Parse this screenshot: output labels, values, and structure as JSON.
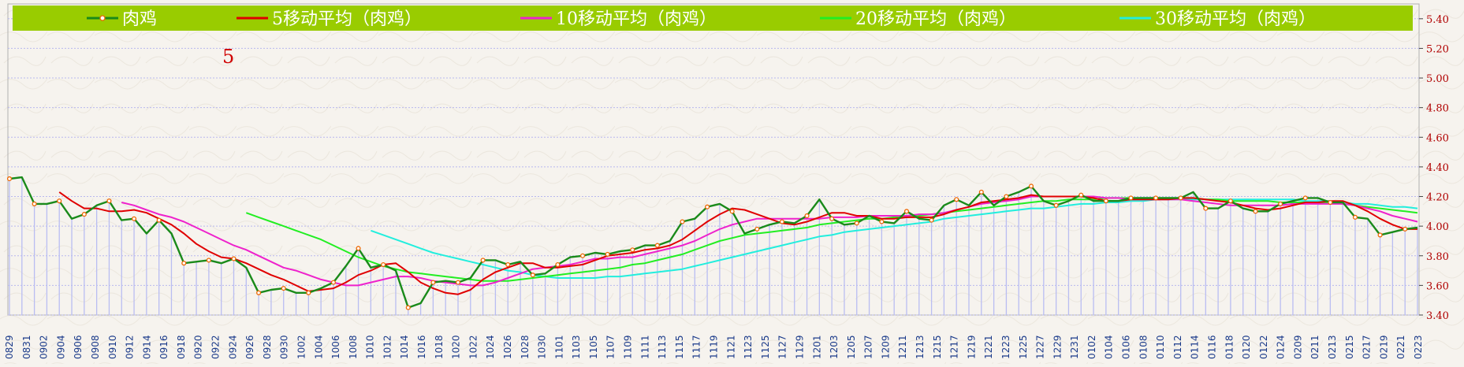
{
  "chart_data": {
    "type": "line",
    "annotation": "5",
    "ylim": [
      3.4,
      5.5
    ],
    "yticks": [
      "3.40",
      "3.60",
      "3.80",
      "4.00",
      "4.20",
      "4.40",
      "4.60",
      "4.80",
      "5.00",
      "5.20",
      "5.40"
    ],
    "ytick_values": [
      3.4,
      3.6,
      3.8,
      4.0,
      4.2,
      4.4,
      4.6,
      4.8,
      5.0,
      5.2,
      5.4
    ],
    "x_labels": [
      "0829",
      "0831",
      "0902",
      "0904",
      "0906",
      "0908",
      "0910",
      "0912",
      "0914",
      "0916",
      "0918",
      "0920",
      "0922",
      "0924",
      "0926",
      "0928",
      "0930",
      "1002",
      "1004",
      "1006",
      "1008",
      "1010",
      "1012",
      "1014",
      "1016",
      "1018",
      "1020",
      "1022",
      "1024",
      "1026",
      "1028",
      "1030",
      "1101",
      "1103",
      "1105",
      "1107",
      "1109",
      "1111",
      "1113",
      "1115",
      "1117",
      "1119",
      "1121",
      "1123",
      "1125",
      "1127",
      "1129",
      "1201",
      "1203",
      "1205",
      "1207",
      "1209",
      "1211",
      "1213",
      "1215",
      "1217",
      "1219",
      "1221",
      "1223",
      "1225",
      "1227",
      "1229",
      "1231",
      "0102",
      "0104",
      "0106",
      "0108",
      "0110",
      "0112",
      "0114",
      "0116",
      "0118",
      "0120",
      "0122",
      "0124",
      "0209",
      "0211",
      "0213",
      "0215",
      "0217",
      "0219",
      "0221",
      "0223"
    ],
    "legend": [
      {
        "label": "肉鸡",
        "color": "#1a8a1a",
        "marker": true
      },
      {
        "label": "5移动平均（肉鸡）",
        "color": "#e00000"
      },
      {
        "label": "10移动平均（肉鸡）",
        "color": "#ee22cc"
      },
      {
        "label": "20移动平均（肉鸡）",
        "color": "#22ee22"
      },
      {
        "label": "30移动平均（肉鸡）",
        "color": "#22eedd"
      }
    ],
    "series": [
      {
        "name": "肉鸡",
        "color": "#1a8a1a",
        "values": [
          4.32,
          4.33,
          4.15,
          4.15,
          4.17,
          4.05,
          4.08,
          4.14,
          4.17,
          4.04,
          4.05,
          3.95,
          4.04,
          3.95,
          3.75,
          3.76,
          3.77,
          3.75,
          3.78,
          3.72,
          3.55,
          3.57,
          3.58,
          3.55,
          3.55,
          3.58,
          3.62,
          3.73,
          3.85,
          3.72,
          3.74,
          3.7,
          3.45,
          3.48,
          3.62,
          3.63,
          3.62,
          3.65,
          3.77,
          3.77,
          3.74,
          3.76,
          3.67,
          3.68,
          3.74,
          3.79,
          3.8,
          3.82,
          3.81,
          3.83,
          3.84,
          3.87,
          3.87,
          3.9,
          4.03,
          4.05,
          4.13,
          4.15,
          4.1,
          3.95,
          3.98,
          4.01,
          4.03,
          4.02,
          4.07,
          4.18,
          4.05,
          4.01,
          4.02,
          4.07,
          4.03,
          4.02,
          4.1,
          4.05,
          4.04,
          4.14,
          4.18,
          4.14,
          4.23,
          4.14,
          4.2,
          4.23,
          4.27,
          4.17,
          4.14,
          4.17,
          4.21,
          4.17,
          4.17,
          4.17,
          4.19,
          4.19,
          4.19,
          4.19,
          4.19,
          4.23,
          4.12,
          4.12,
          4.17,
          4.12,
          4.1,
          4.1,
          4.15,
          4.17,
          4.19,
          4.19,
          4.16,
          4.16,
          4.06,
          4.05,
          3.94,
          3.96,
          3.98,
          3.99
        ]
      },
      {
        "name": "5移动平均（肉鸡）",
        "color": "#e00000",
        "values": [
          null,
          null,
          null,
          null,
          4.23,
          4.17,
          4.12,
          4.12,
          4.1,
          4.1,
          4.11,
          4.09,
          4.05,
          4.01,
          3.95,
          3.88,
          3.83,
          3.79,
          3.78,
          3.75,
          3.71,
          3.67,
          3.64,
          3.6,
          3.56,
          3.57,
          3.58,
          3.62,
          3.67,
          3.7,
          3.74,
          3.75,
          3.69,
          3.62,
          3.58,
          3.55,
          3.54,
          3.57,
          3.64,
          3.69,
          3.72,
          3.75,
          3.75,
          3.72,
          3.72,
          3.73,
          3.74,
          3.77,
          3.8,
          3.81,
          3.82,
          3.84,
          3.85,
          3.87,
          3.91,
          3.97,
          4.03,
          4.08,
          4.12,
          4.11,
          4.08,
          4.05,
          4.02,
          4.01,
          4.03,
          4.06,
          4.09,
          4.09,
          4.07,
          4.07,
          4.05,
          4.05,
          4.06,
          4.06,
          4.06,
          4.08,
          4.11,
          4.13,
          4.16,
          4.17,
          4.18,
          4.19,
          4.21,
          4.2,
          4.2,
          4.2,
          4.2,
          4.19,
          4.17,
          4.17,
          4.18,
          4.18,
          4.18,
          4.18,
          4.19,
          4.19,
          4.18,
          4.17,
          4.16,
          4.14,
          4.12,
          4.11,
          4.12,
          4.14,
          4.16,
          4.16,
          4.17,
          4.17,
          4.14,
          4.1,
          4.05,
          4.01,
          3.98,
          3.98
        ]
      },
      {
        "name": "10移动平均（肉鸡）",
        "color": "#ee22cc",
        "values": [
          null,
          null,
          null,
          null,
          null,
          null,
          null,
          null,
          null,
          4.16,
          4.14,
          4.11,
          4.08,
          4.06,
          4.03,
          3.99,
          3.95,
          3.91,
          3.87,
          3.84,
          3.8,
          3.76,
          3.72,
          3.7,
          3.67,
          3.64,
          3.62,
          3.6,
          3.6,
          3.62,
          3.64,
          3.66,
          3.66,
          3.65,
          3.63,
          3.62,
          3.61,
          3.6,
          3.6,
          3.62,
          3.65,
          3.68,
          3.71,
          3.72,
          3.73,
          3.74,
          3.76,
          3.78,
          3.78,
          3.79,
          3.79,
          3.81,
          3.83,
          3.85,
          3.87,
          3.9,
          3.94,
          3.98,
          4.01,
          4.03,
          4.05,
          4.05,
          4.05,
          4.05,
          4.05,
          4.05,
          4.06,
          4.06,
          4.06,
          4.07,
          4.07,
          4.07,
          4.07,
          4.08,
          4.08,
          4.09,
          4.11,
          4.13,
          4.15,
          4.16,
          4.17,
          4.18,
          4.2,
          4.2,
          4.2,
          4.2,
          4.2,
          4.2,
          4.19,
          4.19,
          4.18,
          4.18,
          4.18,
          4.18,
          4.18,
          4.17,
          4.16,
          4.15,
          4.14,
          4.14,
          4.14,
          4.14,
          4.14,
          4.15,
          4.15,
          4.15,
          4.15,
          4.15,
          4.14,
          4.12,
          4.1,
          4.07,
          4.05,
          4.03
        ]
      },
      {
        "name": "20移动平均（肉鸡）",
        "color": "#22ee22",
        "values": [
          null,
          null,
          null,
          null,
          null,
          null,
          null,
          null,
          null,
          null,
          null,
          null,
          null,
          null,
          null,
          null,
          null,
          null,
          null,
          4.09,
          4.06,
          4.03,
          4.0,
          3.97,
          3.94,
          3.91,
          3.87,
          3.83,
          3.79,
          3.76,
          3.73,
          3.71,
          3.69,
          3.68,
          3.67,
          3.66,
          3.65,
          3.64,
          3.63,
          3.63,
          3.63,
          3.64,
          3.65,
          3.66,
          3.67,
          3.68,
          3.69,
          3.7,
          3.71,
          3.72,
          3.74,
          3.75,
          3.77,
          3.79,
          3.81,
          3.84,
          3.87,
          3.9,
          3.92,
          3.94,
          3.95,
          3.96,
          3.97,
          3.98,
          3.99,
          4.01,
          4.02,
          4.03,
          4.04,
          4.05,
          4.05,
          4.06,
          4.06,
          4.07,
          4.08,
          4.09,
          4.1,
          4.11,
          4.12,
          4.13,
          4.14,
          4.15,
          4.16,
          4.17,
          4.17,
          4.18,
          4.18,
          4.18,
          4.19,
          4.19,
          4.19,
          4.19,
          4.19,
          4.19,
          4.19,
          4.19,
          4.18,
          4.18,
          4.17,
          4.17,
          4.17,
          4.17,
          4.16,
          4.16,
          4.16,
          4.16,
          4.16,
          4.15,
          4.14,
          4.13,
          4.12,
          4.11,
          4.1,
          4.09
        ]
      },
      {
        "name": "30移动平均（肉鸡）",
        "color": "#22eedd",
        "values": [
          null,
          null,
          null,
          null,
          null,
          null,
          null,
          null,
          null,
          null,
          null,
          null,
          null,
          null,
          null,
          null,
          null,
          null,
          null,
          null,
          null,
          null,
          null,
          null,
          null,
          null,
          null,
          null,
          null,
          3.97,
          3.94,
          3.91,
          3.88,
          3.85,
          3.82,
          3.8,
          3.78,
          3.76,
          3.74,
          3.72,
          3.7,
          3.69,
          3.67,
          3.66,
          3.65,
          3.65,
          3.65,
          3.65,
          3.66,
          3.66,
          3.67,
          3.68,
          3.69,
          3.7,
          3.71,
          3.73,
          3.75,
          3.77,
          3.79,
          3.81,
          3.83,
          3.85,
          3.87,
          3.89,
          3.91,
          3.93,
          3.94,
          3.96,
          3.97,
          3.98,
          3.99,
          4.0,
          4.01,
          4.02,
          4.03,
          4.05,
          4.06,
          4.07,
          4.08,
          4.09,
          4.1,
          4.11,
          4.12,
          4.12,
          4.13,
          4.14,
          4.15,
          4.15,
          4.16,
          4.16,
          4.17,
          4.17,
          4.18,
          4.18,
          4.18,
          4.18,
          4.18,
          4.18,
          4.18,
          4.18,
          4.18,
          4.18,
          4.18,
          4.18,
          4.17,
          4.17,
          4.17,
          4.16,
          4.15,
          4.15,
          4.14,
          4.13,
          4.13,
          4.12
        ]
      }
    ]
  }
}
